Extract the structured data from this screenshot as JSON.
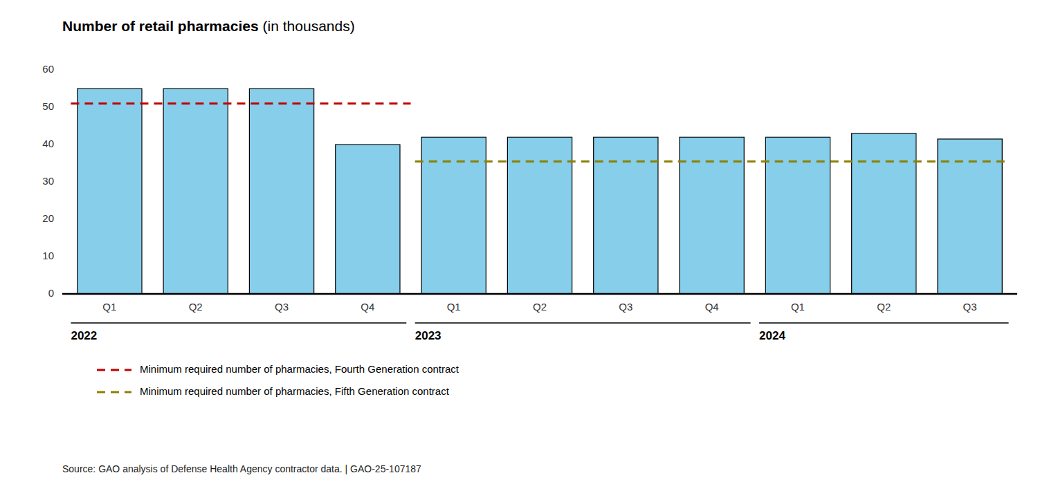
{
  "chart_data": {
    "type": "bar",
    "title": "Number of retail pharmacies",
    "subtitle": "(in thousands)",
    "categories": [
      "Q1",
      "Q2",
      "Q3",
      "Q4",
      "Q1",
      "Q2",
      "Q3",
      "Q4",
      "Q1",
      "Q2",
      "Q3"
    ],
    "values": [
      55,
      55,
      55,
      40,
      42,
      42,
      42,
      42,
      42,
      43,
      41.5
    ],
    "color": "#87CEEB",
    "ylim": [
      0,
      63
    ],
    "yticks": [
      0,
      10,
      20,
      30,
      40,
      50,
      60
    ],
    "grid": false,
    "legend": "bottom",
    "year_groups": [
      {
        "label": "2022",
        "first": 0,
        "last": 3
      },
      {
        "label": "2023",
        "first": 4,
        "last": 7
      },
      {
        "label": "2024",
        "first": 8,
        "last": 10
      }
    ],
    "reference_lines": [
      {
        "name": "Minimum required number of pharmacies, Fourth Generation contract",
        "value": 51,
        "color": "#c00000",
        "line_style": "dashed",
        "first": 0,
        "last": 3
      },
      {
        "name": "Minimum required number of pharmacies, Fifth Generation contract",
        "value": 35.5,
        "color": "#8B8000",
        "line_style": "dashed",
        "first": 4,
        "last": 10
      }
    ],
    "annotations": [
      "Source: GAO analysis of Defense Health Agency contractor data.  |  GAO-25-107187"
    ]
  }
}
